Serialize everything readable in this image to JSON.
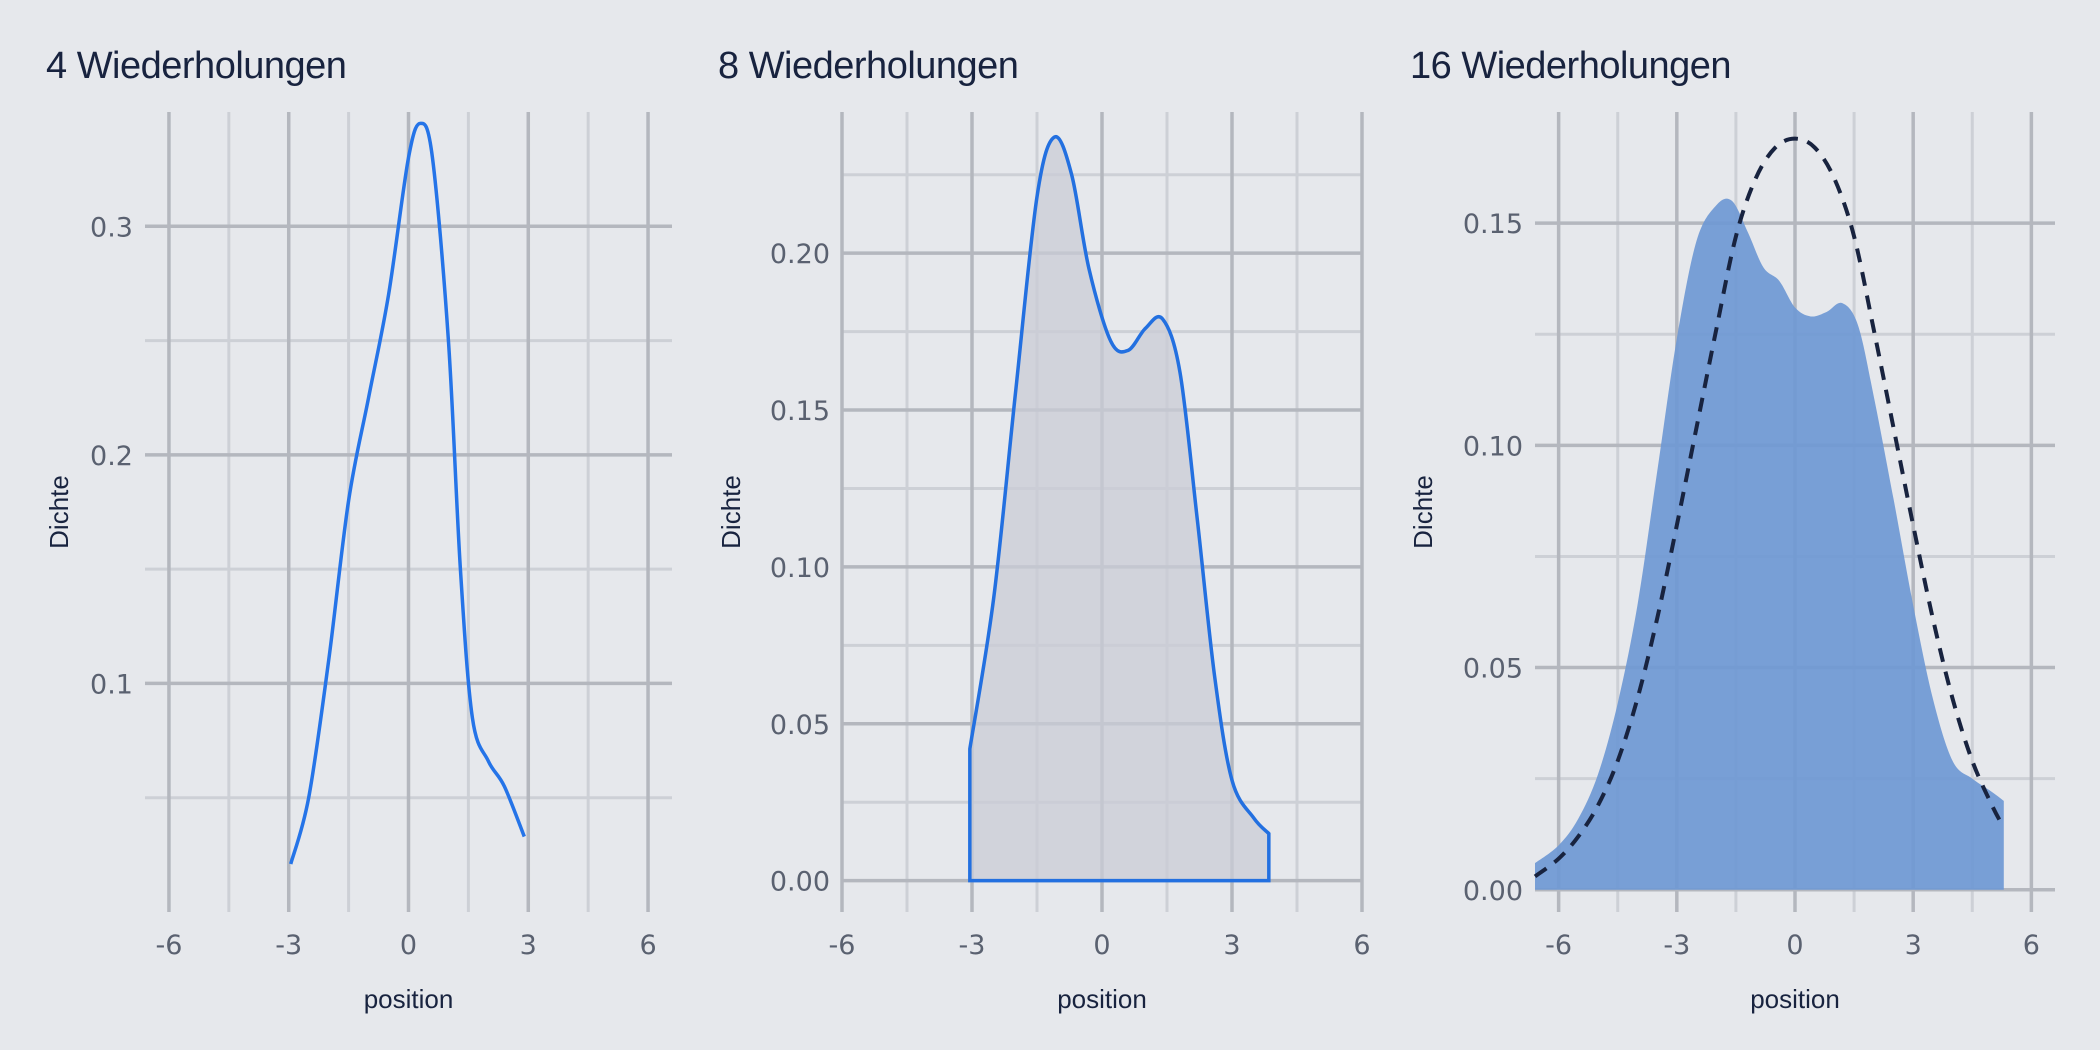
{
  "chart_data": [
    {
      "type": "line",
      "title": "4 Wiederholungen",
      "xlabel": "position",
      "ylabel": "Dichte",
      "xlim": [
        -6.6,
        6.6
      ],
      "ylim": [
        0.0,
        0.35
      ],
      "x_ticks": [
        -6,
        -3,
        0,
        3,
        6
      ],
      "x_tick_labels": [
        "-6",
        "-3",
        "0",
        "3",
        "6"
      ],
      "y_ticks": [
        0.1,
        0.2,
        0.3
      ],
      "y_tick_labels": [
        "0.1",
        "0.2",
        "0.3"
      ],
      "grid": true,
      "series": [
        {
          "style": "line",
          "color": "#2574e8",
          "x": [
            -2.95,
            -2.5,
            -2.0,
            -1.5,
            -1.0,
            -0.5,
            0.0,
            0.3,
            0.6,
            1.0,
            1.3,
            1.6,
            2.0,
            2.4,
            2.9
          ],
          "y": [
            0.021,
            0.05,
            0.11,
            0.18,
            0.225,
            0.27,
            0.33,
            0.345,
            0.33,
            0.25,
            0.15,
            0.085,
            0.066,
            0.055,
            0.033
          ]
        }
      ]
    },
    {
      "type": "area",
      "title": "8 Wiederholungen",
      "xlabel": "position",
      "ylabel": "Dichte",
      "xlim": [
        -6.0,
        6.0
      ],
      "ylim": [
        -0.01,
        0.245
      ],
      "x_ticks": [
        -6,
        -3,
        0,
        3,
        6
      ],
      "x_tick_labels": [
        "-6",
        "-3",
        "0",
        "3",
        "6"
      ],
      "y_ticks": [
        0.0,
        0.05,
        0.1,
        0.15,
        0.2
      ],
      "y_tick_labels": [
        "0.00",
        "0.05",
        "0.10",
        "0.15",
        "0.20"
      ],
      "grid": true,
      "series": [
        {
          "style": "area",
          "fill": "#c9ccd6",
          "color": "#2370e0",
          "x": [
            -3.05,
            -2.5,
            -2.0,
            -1.5,
            -1.1,
            -0.7,
            -0.3,
            0.2,
            0.6,
            1.0,
            1.4,
            1.8,
            2.2,
            2.6,
            3.0,
            3.5,
            3.85
          ],
          "y": [
            0.042,
            0.09,
            0.155,
            0.218,
            0.237,
            0.225,
            0.195,
            0.172,
            0.169,
            0.176,
            0.179,
            0.162,
            0.115,
            0.065,
            0.032,
            0.02,
            0.015
          ]
        }
      ]
    },
    {
      "type": "area",
      "title": "16 Wiederholungen",
      "xlabel": "position",
      "ylabel": "Dichte",
      "xlim": [
        -6.6,
        6.6
      ],
      "ylim": [
        -0.005,
        0.175
      ],
      "x_ticks": [
        -6,
        -3,
        0,
        3,
        6
      ],
      "x_tick_labels": [
        "-6",
        "-3",
        "0",
        "3",
        "6"
      ],
      "y_ticks": [
        0.0,
        0.05,
        0.1,
        0.15
      ],
      "y_tick_labels": [
        "0.00",
        "0.05",
        "0.10",
        "0.15"
      ],
      "grid": true,
      "series": [
        {
          "style": "area",
          "fill": "#6f98d4",
          "x": [
            -6.6,
            -6.0,
            -5.5,
            -5.0,
            -4.5,
            -4.0,
            -3.5,
            -3.0,
            -2.5,
            -2.0,
            -1.6,
            -1.2,
            -0.8,
            -0.4,
            0.0,
            0.4,
            0.8,
            1.2,
            1.6,
            2.0,
            2.5,
            3.0,
            3.5,
            4.0,
            4.5,
            5.0,
            5.3
          ],
          "y": [
            0.006,
            0.01,
            0.016,
            0.026,
            0.042,
            0.064,
            0.094,
            0.124,
            0.146,
            0.154,
            0.155,
            0.148,
            0.14,
            0.137,
            0.131,
            0.129,
            0.13,
            0.132,
            0.127,
            0.111,
            0.088,
            0.064,
            0.043,
            0.029,
            0.025,
            0.022,
            0.02
          ]
        },
        {
          "style": "dashed",
          "color": "#18233f",
          "x": [
            -6.6,
            -6.0,
            -5.5,
            -5.0,
            -4.5,
            -4.0,
            -3.5,
            -3.0,
            -2.5,
            -2.0,
            -1.5,
            -1.0,
            -0.5,
            0.0,
            0.5,
            1.0,
            1.5,
            2.0,
            2.5,
            3.0,
            3.5,
            4.0,
            4.5,
            5.0,
            5.3
          ],
          "y": [
            0.003,
            0.007,
            0.012,
            0.019,
            0.029,
            0.043,
            0.061,
            0.082,
            0.104,
            0.126,
            0.147,
            0.16,
            0.167,
            0.169,
            0.167,
            0.16,
            0.147,
            0.126,
            0.104,
            0.082,
            0.061,
            0.043,
            0.029,
            0.019,
            0.014
          ]
        }
      ]
    }
  ]
}
